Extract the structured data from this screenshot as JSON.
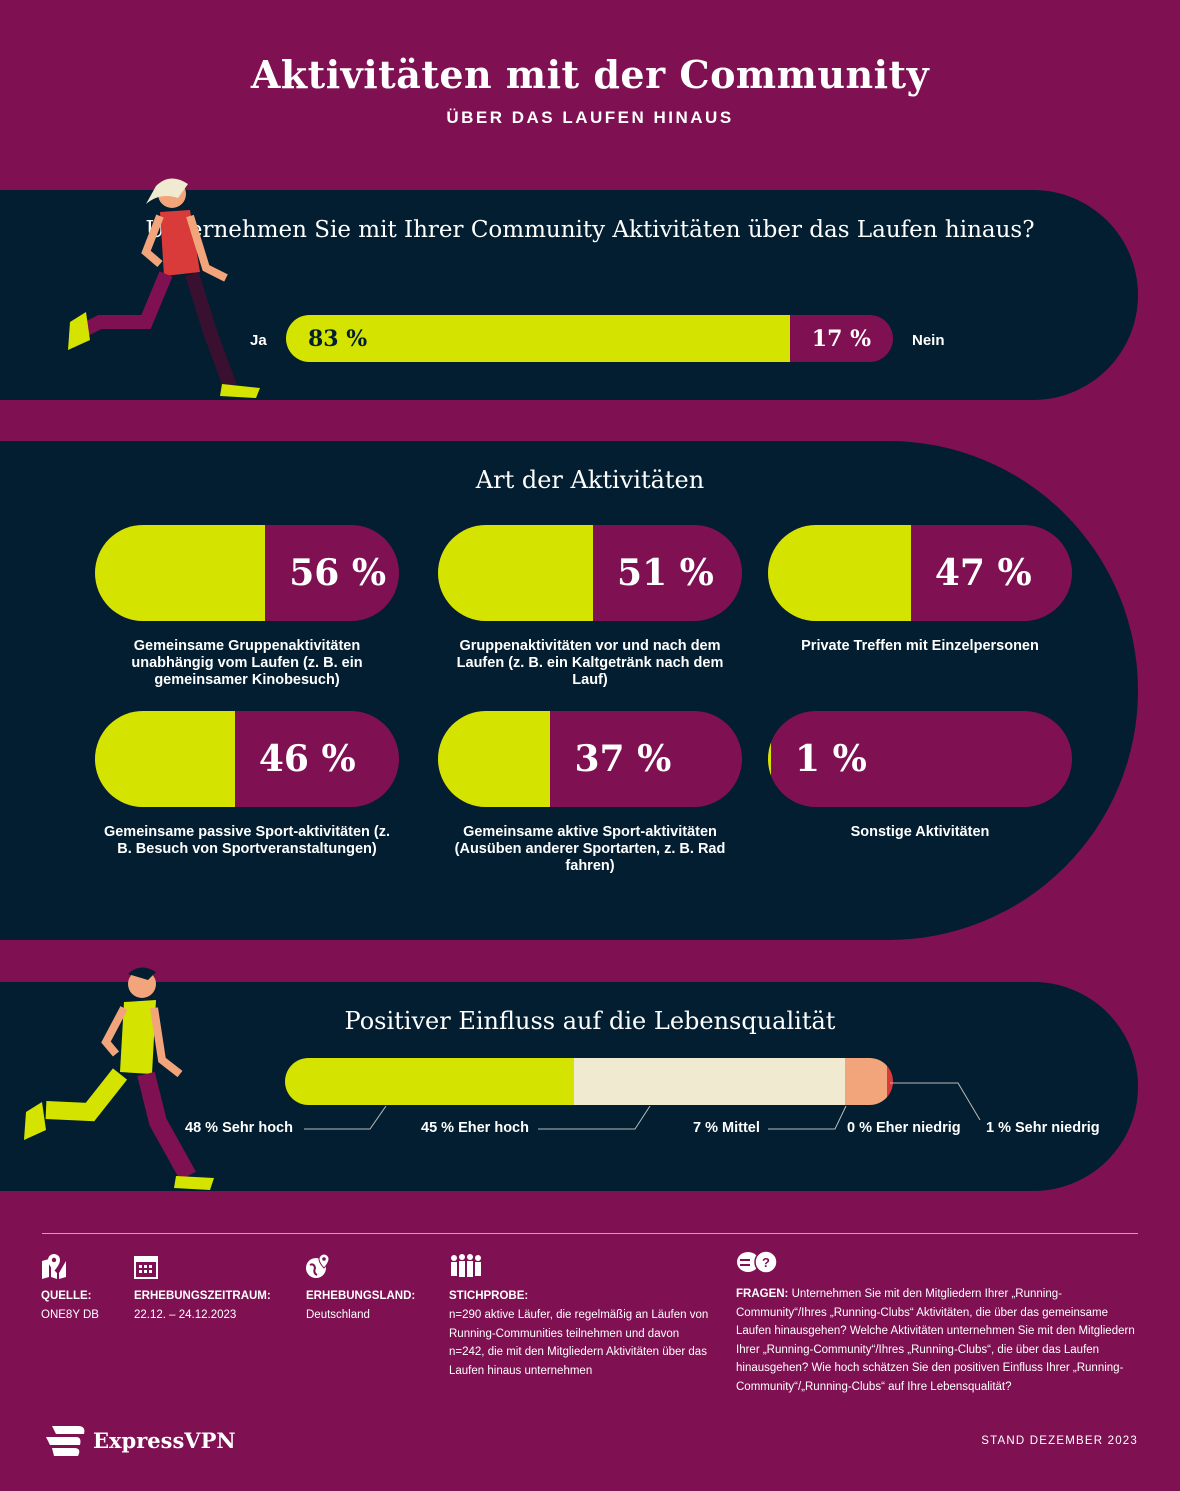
{
  "header": {
    "title": "Aktivitäten mit der Community",
    "subtitle": "ÜBER DAS LAUFEN HINAUS"
  },
  "colors": {
    "background": "#7F1152",
    "panel": "#021E30",
    "lime": "#D4E400",
    "cream": "#F0EAD0",
    "salmon": "#F2A47A",
    "red": "#D93A3A"
  },
  "chart_data": [
    {
      "type": "bar",
      "orientation": "horizontal-stacked",
      "title": "Unternehmen Sie mit Ihrer Community Aktivitäten über das Laufen hinaus?",
      "categories": [
        "Ja",
        "Nein"
      ],
      "values": [
        83,
        17
      ],
      "labels": [
        "83 %",
        "17 %"
      ],
      "unit": "%"
    },
    {
      "type": "bar",
      "title": "Art der Aktivitäten",
      "unit": "%",
      "categories": [
        "Gemeinsame Gruppenaktivitäten unabhängig vom Laufen (z. B. ein gemeinsamer Kinobesuch)",
        "Gruppenaktivitäten vor und nach dem Laufen (z. B. ein Kaltgetränk nach dem Lauf)",
        "Private Treffen mit Einzelpersonen",
        "Gemeinsame passive Sport-aktivitäten (z. B. Besuch von Sportveranstaltungen)",
        "Gemeinsame aktive Sport-aktivitäten (Ausüben anderer Sportarten, z. B. Rad fahren)",
        "Sonstige Aktivitäten"
      ],
      "values": [
        56,
        51,
        47,
        46,
        37,
        1
      ],
      "labels": [
        "56 %",
        "51 %",
        "47 %",
        "46 %",
        "37 %",
        "1 %"
      ]
    },
    {
      "type": "bar",
      "orientation": "horizontal-stacked",
      "title": "Positiver Einfluss auf die Lebensqualität",
      "unit": "%",
      "categories": [
        "Sehr hoch",
        "Eher hoch",
        "Mittel",
        "Eher niedrig",
        "Sehr niedrig"
      ],
      "values": [
        48,
        45,
        7,
        0,
        1
      ],
      "labels": [
        "48 % Sehr hoch",
        "45 % Eher hoch",
        "7 % Mittel",
        "0 % Eher niedrig",
        "1 % Sehr niedrig"
      ],
      "colors": [
        "#D4E400",
        "#F0EAD0",
        "#F2A47A",
        "#F2A47A",
        "#D93A3A"
      ]
    }
  ],
  "footer": {
    "source": {
      "label": "QUELLE:",
      "value": "ONE8Y DB",
      "icon": "map-pin-icon"
    },
    "period": {
      "label": "ERHEBUNGSZEITRAUM:",
      "value": "22.12. – 24.12.2023",
      "icon": "calendar-icon"
    },
    "country": {
      "label": "ERHEBUNGSLAND:",
      "value": "Deutschland",
      "icon": "globe-pin-icon"
    },
    "sample": {
      "label": "STICHPROBE:",
      "value": "n=290 aktive Läufer, die regelmäßig an Läufen von Running-Communities teilnehmen und davon n=242, die mit den Mitgliedern Aktivitäten über das Laufen hinaus unternehmen",
      "icon": "people-icon"
    },
    "questions": {
      "label": "FRAGEN:",
      "value": "Unternehmen Sie mit den Mitgliedern Ihrer „Running-Community“/Ihres „Running-Clubs“ Aktivitäten, die über das gemeinsame Laufen hinausgehen? Welche Aktivitäten unternehmen Sie mit den Mitgliedern Ihrer „Running-Community“/Ihres „Running-Clubs“, die über das Laufen hinausgehen? Wie hoch schätzen Sie den positiven Einfluss Ihrer „Running-Community“/„Running-Clubs“ auf Ihre Lebensqualität?",
      "icon": "chat-question-icon"
    },
    "brand": "ExpressVPN",
    "stand": "STAND DEZEMBER 2023"
  }
}
